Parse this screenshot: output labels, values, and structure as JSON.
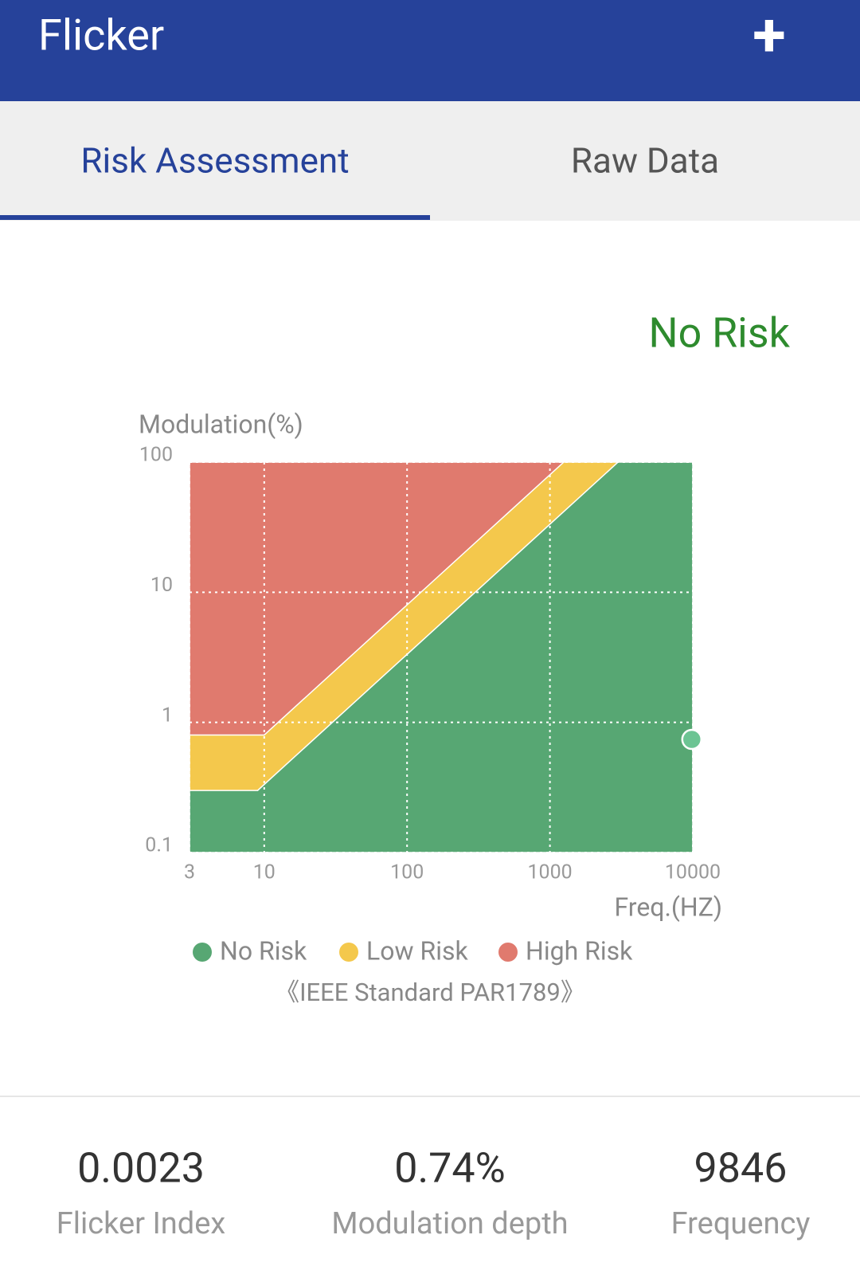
{
  "header": {
    "title": "Flicker",
    "action": "+"
  },
  "tabs": [
    {
      "label": "Risk Assessment",
      "active": true
    },
    {
      "label": "Raw Data",
      "active": false
    }
  ],
  "status": "No Risk",
  "chart_data": {
    "type": "risk-zones",
    "y_label": "Modulation(%)",
    "x_label": "Freq.(HZ)",
    "xscale": "log",
    "yscale": "log",
    "grid": true,
    "xlim": [
      3,
      10000
    ],
    "ylim": [
      0.1,
      100
    ],
    "xticks": [
      3,
      10,
      100,
      1000,
      10000
    ],
    "yticks": [
      0.1,
      1,
      10,
      100
    ],
    "series": [
      {
        "name": "No Risk",
        "color": "#57a773",
        "x": [
          3,
          9,
          3000,
          10000
        ],
        "values": [
          0.3,
          0.3,
          100,
          100
        ]
      },
      {
        "name": "Low Risk",
        "color": "#f4c84c",
        "x": [
          3,
          10,
          1250,
          10000
        ],
        "values": [
          0.8,
          0.8,
          100,
          100
        ]
      },
      {
        "name": "High Risk",
        "color": "#e07a6e",
        "x": [
          3,
          10000
        ],
        "values": [
          100,
          100
        ]
      }
    ],
    "point": {
      "x": 9846,
      "y": 0.74,
      "color": "#6cc493"
    },
    "note": "《IEEE Standard PAR1789》"
  },
  "stats": [
    {
      "value": "0.0023",
      "label": "Flicker Index"
    },
    {
      "value": "0.74%",
      "label": "Modulation depth"
    },
    {
      "value": "9846",
      "label": "Frequency"
    }
  ]
}
